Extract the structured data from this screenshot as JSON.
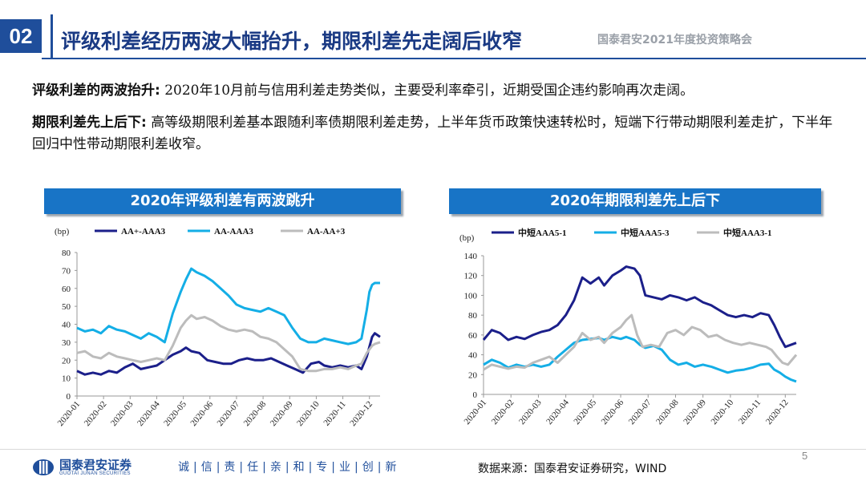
{
  "header": {
    "section_number": "02",
    "title": "评级利差经历两波大幅抬升，期限利差先走阔后收窄",
    "brand": "国泰君安2021年度投资策略会"
  },
  "body": {
    "p1_label": "评级利差的两波抬升:",
    "p1_text": " 2020年10月前与信用利差走势类似，主要受利率牵引，近期受国企违约影响再次走阔。",
    "p2_label": "期限利差先上后下:",
    "p2_text": " 高等级期限利差基本跟随利率债期限利差走势，上半年货币政策快速转松时，短端下行带动期限利差走扩，下半年回归中性带动期限利差收窄。"
  },
  "footer": {
    "company": "国泰君安证券",
    "company_en": "GUOTAI JUNAN SECURITIES",
    "slogan": "诚|信|责|任|亲|和|专|业|创|新",
    "source": "数据来源：国泰君安证券研究，WIND",
    "page": "5"
  },
  "colors": {
    "dark_blue": "#1b1f8a",
    "light_blue": "#14aee6",
    "grey": "#bcbcbc",
    "header_blue": "#1874c6"
  },
  "chart_data": [
    {
      "type": "line",
      "title": "2020年评级利差有两波跳升",
      "ylabel": "(bp)",
      "ylim": [
        0,
        80
      ],
      "yticks": [
        0,
        10,
        20,
        30,
        40,
        50,
        60,
        70,
        80
      ],
      "x_tick_labels": [
        "2020-01",
        "2020-02",
        "2020-03",
        "2020-04",
        "2020-05",
        "2020-06",
        "2020-07",
        "2020-08",
        "2020-09",
        "2020-10",
        "2020-11",
        "2020-12"
      ],
      "x_range": [
        0,
        11.4
      ],
      "series": [
        {
          "name": "AA+-AAA3",
          "color": "#1b1f8a",
          "points": [
            [
              0,
              14
            ],
            [
              0.3,
              12
            ],
            [
              0.6,
              13
            ],
            [
              0.9,
              12
            ],
            [
              1.2,
              14
            ],
            [
              1.5,
              13
            ],
            [
              1.8,
              16
            ],
            [
              2.1,
              18
            ],
            [
              2.4,
              15
            ],
            [
              2.7,
              16
            ],
            [
              3.0,
              17
            ],
            [
              3.3,
              20
            ],
            [
              3.6,
              23
            ],
            [
              3.9,
              25
            ],
            [
              4.1,
              27
            ],
            [
              4.3,
              25
            ],
            [
              4.6,
              24
            ],
            [
              4.9,
              20
            ],
            [
              5.2,
              19
            ],
            [
              5.5,
              18
            ],
            [
              5.8,
              18
            ],
            [
              6.1,
              20
            ],
            [
              6.4,
              21
            ],
            [
              6.7,
              20
            ],
            [
              7.0,
              20
            ],
            [
              7.3,
              21
            ],
            [
              7.6,
              19
            ],
            [
              7.9,
              17
            ],
            [
              8.2,
              15
            ],
            [
              8.5,
              13
            ],
            [
              8.8,
              18
            ],
            [
              9.1,
              19
            ],
            [
              9.3,
              17
            ],
            [
              9.6,
              16
            ],
            [
              9.9,
              17
            ],
            [
              10.2,
              16
            ],
            [
              10.5,
              17
            ],
            [
              10.7,
              15
            ],
            [
              10.9,
              22
            ],
            [
              11.1,
              33
            ],
            [
              11.2,
              35
            ],
            [
              11.4,
              33
            ]
          ]
        },
        {
          "name": "AA-AAA3",
          "color": "#14aee6",
          "points": [
            [
              0,
              38
            ],
            [
              0.3,
              36
            ],
            [
              0.6,
              37
            ],
            [
              0.9,
              35
            ],
            [
              1.2,
              39
            ],
            [
              1.5,
              37
            ],
            [
              1.8,
              36
            ],
            [
              2.1,
              34
            ],
            [
              2.4,
              32
            ],
            [
              2.7,
              35
            ],
            [
              3.0,
              33
            ],
            [
              3.3,
              30
            ],
            [
              3.6,
              46
            ],
            [
              3.9,
              58
            ],
            [
              4.1,
              65
            ],
            [
              4.3,
              71
            ],
            [
              4.5,
              69
            ],
            [
              4.8,
              67
            ],
            [
              5.1,
              64
            ],
            [
              5.4,
              60
            ],
            [
              5.7,
              56
            ],
            [
              6.0,
              51
            ],
            [
              6.3,
              49
            ],
            [
              6.6,
              48
            ],
            [
              6.9,
              47
            ],
            [
              7.2,
              49
            ],
            [
              7.5,
              47
            ],
            [
              7.8,
              45
            ],
            [
              8.1,
              38
            ],
            [
              8.4,
              32
            ],
            [
              8.7,
              30
            ],
            [
              9.0,
              30
            ],
            [
              9.3,
              32
            ],
            [
              9.6,
              31
            ],
            [
              9.9,
              30
            ],
            [
              10.2,
              29
            ],
            [
              10.5,
              30
            ],
            [
              10.7,
              32
            ],
            [
              10.9,
              48
            ],
            [
              11.0,
              58
            ],
            [
              11.1,
              62
            ],
            [
              11.2,
              63
            ],
            [
              11.4,
              63
            ]
          ]
        },
        {
          "name": "AA-AA+3",
          "color": "#bcbcbc",
          "points": [
            [
              0,
              24
            ],
            [
              0.3,
              25
            ],
            [
              0.6,
              22
            ],
            [
              0.9,
              21
            ],
            [
              1.2,
              24
            ],
            [
              1.5,
              22
            ],
            [
              1.8,
              21
            ],
            [
              2.1,
              20
            ],
            [
              2.4,
              19
            ],
            [
              2.7,
              20
            ],
            [
              3.0,
              21
            ],
            [
              3.3,
              20
            ],
            [
              3.6,
              28
            ],
            [
              3.9,
              38
            ],
            [
              4.1,
              42
            ],
            [
              4.3,
              45
            ],
            [
              4.5,
              43
            ],
            [
              4.8,
              44
            ],
            [
              5.1,
              42
            ],
            [
              5.4,
              39
            ],
            [
              5.7,
              37
            ],
            [
              6.0,
              36
            ],
            [
              6.3,
              37
            ],
            [
              6.6,
              36
            ],
            [
              6.9,
              33
            ],
            [
              7.2,
              32
            ],
            [
              7.5,
              30
            ],
            [
              7.8,
              26
            ],
            [
              8.1,
              22
            ],
            [
              8.4,
              15
            ],
            [
              8.7,
              14
            ],
            [
              9.0,
              14
            ],
            [
              9.3,
              15
            ],
            [
              9.6,
              15
            ],
            [
              9.9,
              16
            ],
            [
              10.2,
              15
            ],
            [
              10.5,
              17
            ],
            [
              10.7,
              18
            ],
            [
              10.9,
              24
            ],
            [
              11.1,
              28
            ],
            [
              11.2,
              29
            ],
            [
              11.4,
              30
            ]
          ]
        }
      ]
    },
    {
      "type": "line",
      "title": "2020年期限利差先上后下",
      "ylabel": "(bp)",
      "ylim": [
        0,
        140
      ],
      "yticks": [
        0,
        20,
        40,
        60,
        80,
        100,
        120,
        140
      ],
      "x_tick_labels": [
        "2020-01",
        "2020-02",
        "2020-03",
        "2020-04",
        "2020-05",
        "2020-06",
        "2020-07",
        "2020-08",
        "2020-09",
        "2020-10",
        "2020-11",
        "2020-12"
      ],
      "x_range": [
        0,
        11.4
      ],
      "series": [
        {
          "name": "中短AAA5-1",
          "color": "#1b1f8a",
          "points": [
            [
              0,
              55
            ],
            [
              0.3,
              65
            ],
            [
              0.6,
              62
            ],
            [
              0.9,
              55
            ],
            [
              1.2,
              58
            ],
            [
              1.5,
              56
            ],
            [
              1.8,
              60
            ],
            [
              2.1,
              63
            ],
            [
              2.4,
              65
            ],
            [
              2.7,
              70
            ],
            [
              3.0,
              80
            ],
            [
              3.3,
              95
            ],
            [
              3.6,
              118
            ],
            [
              3.9,
              112
            ],
            [
              4.2,
              118
            ],
            [
              4.4,
              110
            ],
            [
              4.7,
              120
            ],
            [
              5.0,
              125
            ],
            [
              5.2,
              129
            ],
            [
              5.5,
              127
            ],
            [
              5.7,
              120
            ],
            [
              5.9,
              100
            ],
            [
              6.2,
              98
            ],
            [
              6.5,
              96
            ],
            [
              6.8,
              100
            ],
            [
              7.1,
              98
            ],
            [
              7.4,
              95
            ],
            [
              7.7,
              98
            ],
            [
              8.0,
              93
            ],
            [
              8.3,
              90
            ],
            [
              8.6,
              85
            ],
            [
              8.9,
              80
            ],
            [
              9.2,
              78
            ],
            [
              9.5,
              80
            ],
            [
              9.8,
              78
            ],
            [
              10.1,
              82
            ],
            [
              10.4,
              80
            ],
            [
              10.6,
              70
            ],
            [
              10.8,
              58
            ],
            [
              11.0,
              48
            ],
            [
              11.2,
              50
            ],
            [
              11.4,
              52
            ]
          ]
        },
        {
          "name": "中短AAA5-3",
          "color": "#14aee6",
          "points": [
            [
              0,
              30
            ],
            [
              0.3,
              35
            ],
            [
              0.6,
              32
            ],
            [
              0.9,
              27
            ],
            [
              1.2,
              30
            ],
            [
              1.5,
              28
            ],
            [
              1.8,
              30
            ],
            [
              2.1,
              28
            ],
            [
              2.4,
              30
            ],
            [
              2.7,
              38
            ],
            [
              3.0,
              45
            ],
            [
              3.3,
              52
            ],
            [
              3.6,
              55
            ],
            [
              3.9,
              56
            ],
            [
              4.2,
              57
            ],
            [
              4.4,
              55
            ],
            [
              4.7,
              58
            ],
            [
              5.0,
              56
            ],
            [
              5.2,
              58
            ],
            [
              5.5,
              55
            ],
            [
              5.7,
              50
            ],
            [
              5.9,
              47
            ],
            [
              6.2,
              49
            ],
            [
              6.5,
              45
            ],
            [
              6.8,
              35
            ],
            [
              7.1,
              30
            ],
            [
              7.4,
              32
            ],
            [
              7.7,
              28
            ],
            [
              8.0,
              30
            ],
            [
              8.3,
              28
            ],
            [
              8.6,
              25
            ],
            [
              8.9,
              22
            ],
            [
              9.2,
              24
            ],
            [
              9.5,
              25
            ],
            [
              9.8,
              27
            ],
            [
              10.1,
              30
            ],
            [
              10.4,
              31
            ],
            [
              10.6,
              25
            ],
            [
              10.8,
              22
            ],
            [
              11.0,
              18
            ],
            [
              11.2,
              15
            ],
            [
              11.4,
              13
            ]
          ]
        },
        {
          "name": "中短AAA3-1",
          "color": "#bcbcbc",
          "points": [
            [
              0,
              25
            ],
            [
              0.3,
              30
            ],
            [
              0.6,
              28
            ],
            [
              0.9,
              26
            ],
            [
              1.2,
              28
            ],
            [
              1.5,
              27
            ],
            [
              1.8,
              32
            ],
            [
              2.1,
              35
            ],
            [
              2.4,
              38
            ],
            [
              2.7,
              32
            ],
            [
              3.0,
              40
            ],
            [
              3.3,
              48
            ],
            [
              3.6,
              62
            ],
            [
              3.9,
              55
            ],
            [
              4.2,
              58
            ],
            [
              4.4,
              52
            ],
            [
              4.7,
              62
            ],
            [
              5.0,
              68
            ],
            [
              5.2,
              75
            ],
            [
              5.4,
              80
            ],
            [
              5.6,
              60
            ],
            [
              5.8,
              48
            ],
            [
              6.1,
              50
            ],
            [
              6.4,
              48
            ],
            [
              6.7,
              62
            ],
            [
              7.0,
              65
            ],
            [
              7.3,
              60
            ],
            [
              7.6,
              68
            ],
            [
              7.9,
              65
            ],
            [
              8.2,
              58
            ],
            [
              8.5,
              60
            ],
            [
              8.8,
              55
            ],
            [
              9.1,
              52
            ],
            [
              9.4,
              50
            ],
            [
              9.7,
              52
            ],
            [
              10.0,
              50
            ],
            [
              10.3,
              48
            ],
            [
              10.5,
              45
            ],
            [
              10.7,
              38
            ],
            [
              10.9,
              32
            ],
            [
              11.1,
              30
            ],
            [
              11.4,
              40
            ]
          ]
        }
      ]
    }
  ]
}
